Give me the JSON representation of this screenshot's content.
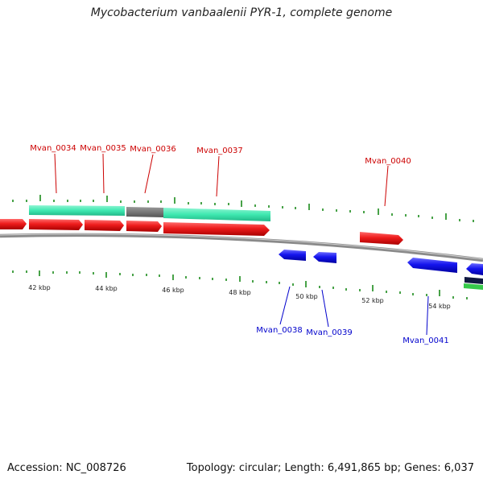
{
  "title": "Mycobacterium vanbaalenii PYR-1, complete genome",
  "footer": {
    "accession": "Accession: NC_008726",
    "summary": "Topology: circular; Length: 6,491,865 bp; Genes: 6,037"
  },
  "colors": {
    "forward_gene": "#e41c1c",
    "reverse_gene": "#1212e6",
    "rna_track": "#3ee8b0",
    "hypothetical_track": "#707070",
    "backbone": "#8a8a8a",
    "ticks": "#1a8a1a"
  },
  "scale": {
    "unit": "kbp",
    "labels": [
      "42 kbp",
      "44 kbp",
      "46 kbp",
      "48 kbp",
      "50 kbp",
      "52 kbp",
      "54 kbp"
    ]
  },
  "genes": {
    "forward": [
      "Mvan_0034",
      "Mvan_0035",
      "Mvan_0036",
      "Mvan_0037",
      "Mvan_0040"
    ],
    "reverse": [
      "Mvan_0038",
      "Mvan_0039",
      "Mvan_0041"
    ]
  }
}
